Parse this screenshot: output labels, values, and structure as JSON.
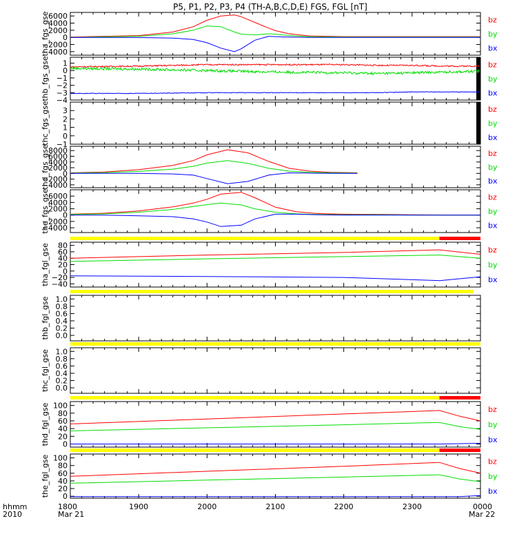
{
  "title": "P5, P1, P2, P3, P4 (TH-A,B,C,D,E) FGS, FGL [nT]",
  "time_axis": {
    "ticks": [
      "1800",
      "1900",
      "2000",
      "2100",
      "2200",
      "2300",
      "0000"
    ],
    "start_date": "Mar 21",
    "end_date": "Mar 22",
    "corner_label": "hhmm",
    "corner_year": "2010"
  },
  "colors": {
    "bx": "#0000ff",
    "by": "#00dd00",
    "bz": "#ff0000",
    "flag_yellow": "#ffff00",
    "flag_red": "#ff0000",
    "axis": "#000000"
  },
  "chart_data": [
    {
      "type": "line",
      "ylabel": "tha_fgs_gse",
      "ylim": [
        -5000,
        7000
      ],
      "yticks": [
        6000,
        4000,
        2000,
        0,
        -2000,
        -4000
      ],
      "ytick_labels": [
        "6000",
        "4000",
        "2000",
        "0",
        "−2000",
        "−4000"
      ],
      "legend": [
        "bz",
        "by",
        "bx"
      ],
      "x_hours": [
        18.0,
        19.0,
        19.5,
        19.8,
        20.0,
        20.2,
        20.4,
        20.5,
        20.7,
        20.9,
        21.0,
        21.2,
        21.5,
        22.0,
        23.0,
        24.0
      ],
      "series": [
        {
          "name": "bz",
          "values": [
            100,
            500,
            1500,
            3000,
            4800,
            6000,
            6300,
            5800,
            4200,
            2600,
            1900,
            1000,
            400,
            200,
            200,
            200
          ]
        },
        {
          "name": "by",
          "values": [
            0,
            300,
            1000,
            2000,
            3200,
            3000,
            1500,
            900,
            700,
            1000,
            900,
            500,
            200,
            100,
            100,
            100
          ]
        },
        {
          "name": "bx",
          "values": [
            0,
            -50,
            -200,
            -600,
            -1500,
            -3000,
            -4000,
            -3200,
            -800,
            300,
            200,
            100,
            0,
            0,
            0,
            0
          ]
        }
      ],
      "x_end_hours": [
        24.0,
        24.0,
        24.0
      ]
    },
    {
      "type": "line",
      "ylabel": "thb_fgs_gse",
      "ylim": [
        -4,
        1.8
      ],
      "yticks": [
        1,
        0,
        -1,
        -2,
        -3,
        -4
      ],
      "ytick_labels": [
        "1",
        "0",
        "−1",
        "−2",
        "−3",
        "−4"
      ],
      "legend": [
        "bz",
        "by",
        "bx"
      ],
      "x_hours": [
        18.0,
        19.0,
        20.0,
        21.0,
        22.0,
        22.5,
        23.0,
        23.5,
        24.0
      ],
      "series": [
        {
          "name": "bz",
          "values": [
            0.5,
            0.6,
            0.8,
            0.8,
            0.8,
            0.7,
            0.7,
            0.6,
            0.6
          ]
        },
        {
          "name": "by",
          "values": [
            0.3,
            0.2,
            0.0,
            -0.2,
            -0.3,
            -0.4,
            -0.3,
            -0.2,
            -0.1
          ]
        },
        {
          "name": "bx",
          "values": [
            -3.1,
            -3.1,
            -3.0,
            -3.0,
            -3.0,
            -3.0,
            -2.9,
            -2.9,
            -2.9
          ]
        }
      ],
      "noisy": true,
      "bars_black": true
    },
    {
      "type": "line",
      "ylabel": "thc_fgs_gse",
      "ylim": [
        -1,
        4
      ],
      "yticks": [
        3,
        2,
        1,
        0,
        -1
      ],
      "ytick_labels": [
        "3",
        "2",
        "1",
        "0",
        "−1"
      ],
      "legend": [
        "bz",
        "by",
        "bx"
      ],
      "series": [],
      "bars_black": true
    },
    {
      "type": "line",
      "ylabel": "thd_fgs_gse",
      "ylim": [
        -5000,
        9500
      ],
      "yticks": [
        8000,
        6000,
        4000,
        2000,
        0,
        -2000,
        -4000
      ],
      "ytick_labels": [
        "8000",
        "6000",
        "4000",
        "2000",
        "0",
        "−2000",
        "−4000"
      ],
      "legend": [
        "bz",
        "by",
        "bx"
      ],
      "x_hours": [
        18.0,
        18.5,
        19.0,
        19.5,
        19.8,
        20.0,
        20.3,
        20.6,
        20.9,
        21.2,
        21.5,
        21.8,
        22.2
      ],
      "series": [
        {
          "name": "bz",
          "values": [
            200,
            500,
            1300,
            2800,
            4500,
            6500,
            8300,
            7200,
            4200,
            1800,
            800,
            400,
            200
          ]
        },
        {
          "name": "by",
          "values": [
            100,
            300,
            700,
            1500,
            2500,
            3600,
            4500,
            3500,
            1800,
            800,
            400,
            200,
            100
          ]
        },
        {
          "name": "bx",
          "values": [
            0,
            0,
            0,
            -200,
            -600,
            -1800,
            -3600,
            -2800,
            -600,
            200,
            100,
            0,
            0
          ]
        }
      ]
    },
    {
      "type": "line",
      "ylabel": "the_fgs_gse",
      "ylim": [
        -5500,
        8000
      ],
      "yticks": [
        6000,
        4000,
        2000,
        0,
        -2000,
        -4000
      ],
      "ytick_labels": [
        "6000",
        "4000",
        "2000",
        "0",
        "−2000",
        "−4000"
      ],
      "legend": [
        "bz",
        "by",
        "bx"
      ],
      "x_hours": [
        18.0,
        18.5,
        19.0,
        19.5,
        19.8,
        20.0,
        20.2,
        20.5,
        20.7,
        21.0,
        21.3,
        21.6,
        22.0,
        22.6,
        23.0,
        24.0
      ],
      "series": [
        {
          "name": "bz",
          "values": [
            300,
            600,
            1300,
            2600,
            3800,
            5000,
            6600,
            7200,
            5500,
            2500,
            1100,
            500,
            300,
            200,
            100,
            0
          ]
        },
        {
          "name": "by",
          "values": [
            200,
            400,
            900,
            1800,
            2700,
            3300,
            3800,
            3200,
            2000,
            900,
            400,
            200,
            100,
            100,
            0,
            0
          ]
        },
        {
          "name": "bx",
          "values": [
            0,
            0,
            -200,
            -500,
            -1200,
            -2200,
            -3600,
            -3200,
            -1200,
            300,
            300,
            100,
            0,
            0,
            0,
            0
          ]
        }
      ]
    },
    {
      "type": "line",
      "ylabel": "tha_fgl_gse",
      "ylim": [
        -50,
        90
      ],
      "yticks": [
        80,
        60,
        40,
        20,
        0,
        -20,
        -40
      ],
      "ytick_labels": [
        "80",
        "60",
        "40",
        "20",
        "0",
        "−20",
        "−40"
      ],
      "legend": [
        "bz",
        "by",
        "bx"
      ],
      "flag": {
        "yellow_until_hours": 23.4,
        "red_from_hours": 23.4
      },
      "x_hours": [
        18.0,
        20.0,
        22.0,
        23.4,
        24.0
      ],
      "series": [
        {
          "name": "bz",
          "values": [
            40,
            50,
            58,
            66,
            52
          ]
        },
        {
          "name": "by",
          "values": [
            30,
            38,
            45,
            50,
            40
          ]
        },
        {
          "name": "bx",
          "values": [
            -15,
            -17,
            -20,
            -30,
            -18
          ]
        }
      ]
    },
    {
      "type": "line",
      "ylabel": "thb_fgl_gse",
      "ylim": [
        -0.15,
        1.1
      ],
      "yticks": [
        1.0,
        0.8,
        0.6,
        0.4,
        0.2,
        0.0
      ],
      "ytick_labels": [
        "1.0",
        "0.8",
        "0.6",
        "0.4",
        "0.2",
        "0.0"
      ],
      "legend": [],
      "flag": {
        "yellow_until_hours": 23.9,
        "red_from_hours": null
      },
      "series": []
    },
    {
      "type": "line",
      "ylabel": "thc_fgl_gse",
      "ylim": [
        -0.15,
        1.1
      ],
      "yticks": [
        1.0,
        0.8,
        0.6,
        0.4,
        0.2,
        0.0
      ],
      "ytick_labels": [
        "1.0",
        "0.8",
        "0.6",
        "0.4",
        "0.2",
        "0.0"
      ],
      "legend": [],
      "flag": {
        "yellow_until_hours": 24.0,
        "red_from_hours": null
      },
      "series": []
    },
    {
      "type": "line",
      "ylabel": "thd_fgl_gse",
      "ylim": [
        -8,
        110
      ],
      "yticks": [
        100,
        80,
        60,
        40,
        20,
        0
      ],
      "ytick_labels": [
        "100",
        "80",
        "60",
        "40",
        "20",
        "0"
      ],
      "legend": [
        "bz",
        "by",
        "bx"
      ],
      "flag": {
        "yellow_until_hours": 23.4,
        "red_from_hours": 23.4
      },
      "x_hours": [
        18.0,
        20.0,
        22.0,
        23.4,
        23.7,
        24.0
      ],
      "series": [
        {
          "name": "bz",
          "values": [
            52,
            65,
            78,
            87,
            72,
            60
          ]
        },
        {
          "name": "by",
          "values": [
            34,
            42,
            50,
            56,
            45,
            38
          ]
        },
        {
          "name": "bx",
          "values": [
            0,
            0,
            0,
            0,
            1,
            2
          ]
        }
      ]
    },
    {
      "type": "line",
      "ylabel": "the_fgl_gse",
      "ylim": [
        -5,
        110
      ],
      "yticks": [
        100,
        80,
        60,
        40,
        20,
        0
      ],
      "ytick_labels": [
        "100",
        "80",
        "60",
        "40",
        "20",
        "0"
      ],
      "legend": [
        "bz",
        "by",
        "bx"
      ],
      "flag": {
        "yellow_until_hours": 23.4,
        "red_from_hours": 23.4
      },
      "x_hours": [
        18.0,
        20.0,
        22.0,
        23.4,
        23.7,
        24.0
      ],
      "series": [
        {
          "name": "bz",
          "values": [
            52,
            65,
            78,
            88,
            72,
            60
          ]
        },
        {
          "name": "by",
          "values": [
            34,
            42,
            50,
            56,
            45,
            38
          ]
        },
        {
          "name": "bx",
          "values": [
            -1,
            -1,
            -1,
            -1,
            -1,
            2
          ]
        }
      ]
    }
  ]
}
